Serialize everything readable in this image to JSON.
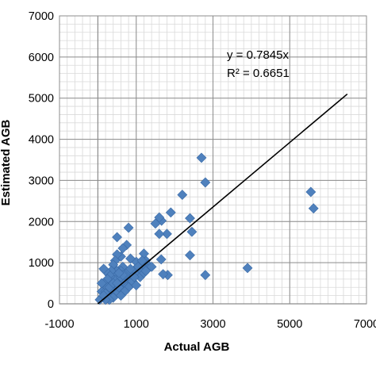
{
  "chart_data": {
    "type": "scatter",
    "xlabel": "Actual AGB",
    "ylabel": "Estimated AGB",
    "xlim": [
      -1000,
      7000
    ],
    "ylim": [
      0,
      7000
    ],
    "x_ticks": [
      -1000,
      1000,
      3000,
      5000,
      7000
    ],
    "y_ticks": [
      0,
      1000,
      2000,
      3000,
      4000,
      5000,
      6000,
      7000
    ],
    "x_tick_labels": [
      "-1000",
      "1000",
      "3000",
      "5000",
      "7000"
    ],
    "y_tick_labels": [
      "0",
      "1000",
      "2000",
      "3000",
      "4000",
      "5000",
      "6000",
      "7000"
    ],
    "grid": true,
    "marker_color": "#4f81bd",
    "trendline": {
      "slope": 0.7845,
      "x_range": [
        0,
        6500
      ],
      "color": "#000000"
    },
    "annotations": {
      "equation": "y = 0.7845x",
      "r_squared": "R² = 0.6651"
    },
    "points": [
      [
        5550,
        2720
      ],
      [
        5620,
        2320
      ],
      [
        3900,
        870
      ],
      [
        2800,
        2950
      ],
      [
        2700,
        3550
      ],
      [
        2800,
        700
      ],
      [
        2400,
        2080
      ],
      [
        2200,
        2650
      ],
      [
        2450,
        1750
      ],
      [
        2400,
        1180
      ],
      [
        1900,
        2220
      ],
      [
        1800,
        1700
      ],
      [
        1820,
        700
      ],
      [
        1660,
        2020
      ],
      [
        1600,
        2100
      ],
      [
        1500,
        1950
      ],
      [
        1600,
        1700
      ],
      [
        1650,
        1080
      ],
      [
        1700,
        720
      ],
      [
        1250,
        1050
      ],
      [
        1300,
        950
      ],
      [
        1200,
        1220
      ],
      [
        1150,
        900
      ],
      [
        1100,
        800
      ],
      [
        1000,
        1020
      ],
      [
        800,
        1850
      ],
      [
        850,
        1100
      ],
      [
        750,
        1430
      ],
      [
        650,
        1350
      ],
      [
        600,
        1150
      ],
      [
        500,
        1620
      ],
      [
        500,
        1200
      ],
      [
        450,
        1050
      ],
      [
        950,
        820
      ],
      [
        850,
        700
      ],
      [
        750,
        650
      ],
      [
        650,
        900
      ],
      [
        600,
        800
      ],
      [
        550,
        600
      ],
      [
        500,
        800
      ],
      [
        450,
        700
      ],
      [
        400,
        950
      ],
      [
        400,
        600
      ],
      [
        350,
        800
      ],
      [
        300,
        700
      ],
      [
        300,
        500
      ],
      [
        250,
        600
      ],
      [
        200,
        800
      ],
      [
        150,
        850
      ],
      [
        150,
        500
      ],
      [
        100,
        300
      ],
      [
        100,
        150
      ],
      [
        200,
        300
      ],
      [
        300,
        250
      ],
      [
        400,
        400
      ],
      [
        500,
        300
      ],
      [
        600,
        450
      ],
      [
        700,
        500
      ],
      [
        800,
        600
      ],
      [
        900,
        550
      ],
      [
        1000,
        700
      ],
      [
        1100,
        650
      ],
      [
        1200,
        750
      ],
      [
        1300,
        850
      ],
      [
        1400,
        900
      ],
      [
        1000,
        450
      ],
      [
        800,
        400
      ],
      [
        700,
        300
      ],
      [
        600,
        200
      ],
      [
        400,
        150
      ],
      [
        300,
        100
      ],
      [
        200,
        100
      ],
      [
        50,
        100
      ],
      [
        100,
        500
      ],
      [
        250,
        400
      ],
      [
        350,
        350
      ],
      [
        450,
        450
      ],
      [
        550,
        400
      ],
      [
        650,
        550
      ],
      [
        750,
        750
      ],
      [
        850,
        850
      ],
      [
        950,
        650
      ],
      [
        1050,
        900
      ],
      [
        1150,
        1050
      ],
      [
        1250,
        800
      ],
      [
        500,
        600
      ],
      [
        600,
        650
      ],
      [
        700,
        700
      ],
      [
        300,
        400
      ],
      [
        400,
        500
      ],
      [
        200,
        250
      ],
      [
        150,
        200
      ],
      [
        500,
        500
      ],
      [
        650,
        700
      ],
      [
        550,
        750
      ]
    ]
  }
}
